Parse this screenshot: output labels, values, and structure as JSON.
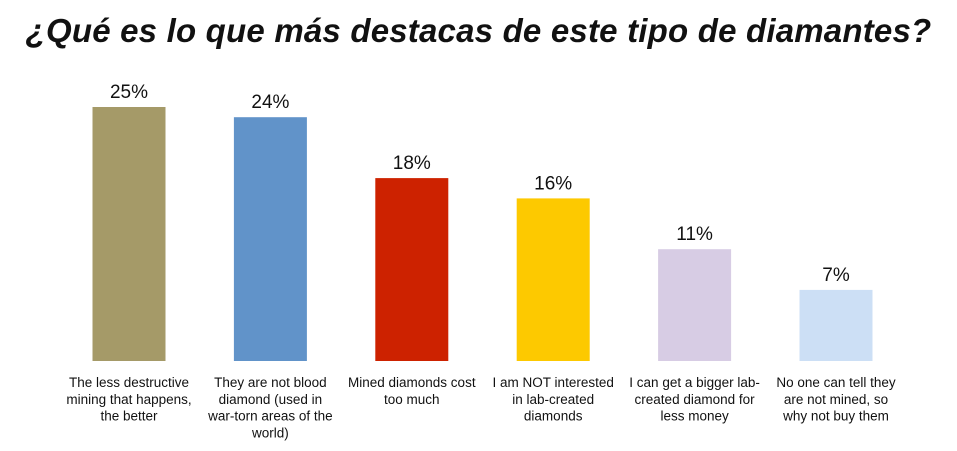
{
  "chart_data": {
    "type": "bar",
    "title": "¿Qué es lo que más destacas de este tipo de diamantes?",
    "xlabel": "",
    "ylabel": "",
    "ylim": [
      0,
      25
    ],
    "grid": false,
    "legend": "none",
    "value_suffix": "%",
    "categories": [
      "The less destructive mining that happens, the better",
      "They are not blood diamond (used in war-torn areas of the world)",
      "Mined diamonds cost too much",
      "I am NOT interested in lab-created diamonds",
      "I can get a bigger lab-created diamond for less money",
      "No one can tell they are not mined, so why not buy them"
    ],
    "category_lines": [
      [
        "The less destructive",
        "mining that happens,",
        "the better"
      ],
      [
        "They are not blood",
        "diamond (used in",
        "war-torn areas of the",
        "world)"
      ],
      [
        "Mined diamonds cost",
        "too much"
      ],
      [
        "I am NOT interested",
        "in lab-created",
        "diamonds"
      ],
      [
        "I can get a bigger lab-",
        "created diamond for",
        "less money"
      ],
      [
        "No one can tell they",
        "are not mined, so",
        "why not buy them"
      ]
    ],
    "values": [
      25,
      24,
      18,
      16,
      11,
      7
    ],
    "value_labels": [
      "25%",
      "24%",
      "18%",
      "16%",
      "11%",
      "7%"
    ],
    "colors": [
      "#A59A68",
      "#6193C9",
      "#CD2200",
      "#FDC900",
      "#D7CCE4",
      "#CCDFF5"
    ]
  }
}
